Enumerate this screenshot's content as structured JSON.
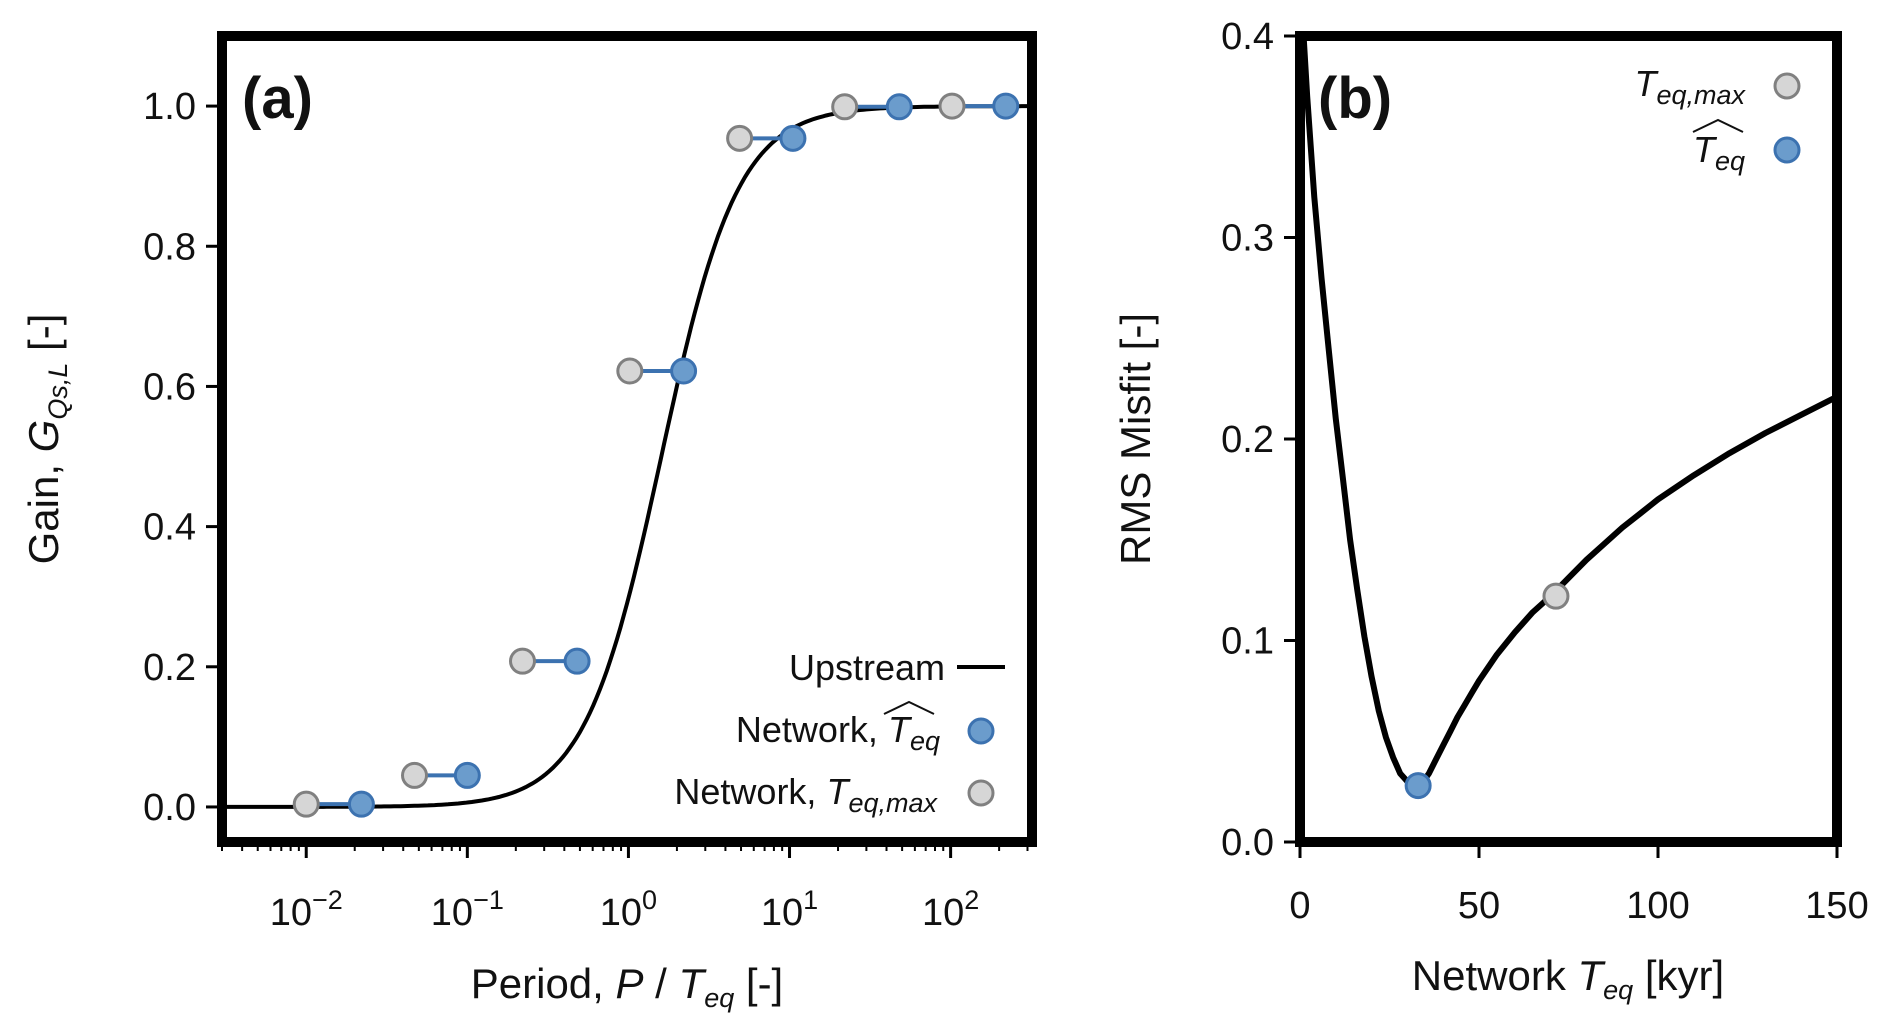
{
  "colors": {
    "network_teq_hat": "#6b9ccc",
    "network_teq_hat_edge": "#3c72b0",
    "network_teq_max": "#d6d6d6",
    "network_teq_max_edge": "#808080",
    "connector": "#3c72b0",
    "upstream": "#000000"
  },
  "chart_data": [
    {
      "panel": "(a)",
      "type": "line",
      "xlabel": "Period, P / T_eq [-]",
      "xlabel_parts": {
        "prefix": "Period, ",
        "var": "P",
        "sep": " / ",
        "var2": "T",
        "sub": "eq",
        "suffix": " [-]"
      },
      "ylabel": "Gain, G_{Qs,L} [-]",
      "ylabel_parts": {
        "prefix": "Gain, ",
        "var": "G",
        "sub": "Qs,L",
        "suffix": " [-]"
      },
      "xscale": "log",
      "xlim": [
        0.003,
        320
      ],
      "ylim": [
        -0.05,
        1.1
      ],
      "xticks": [
        0.01,
        0.1,
        1,
        10,
        100
      ],
      "xtick_labels": [
        {
          "base": "10",
          "exp": "−2"
        },
        {
          "base": "10",
          "exp": "−1"
        },
        {
          "base": "10",
          "exp": "0"
        },
        {
          "base": "10",
          "exp": "1"
        },
        {
          "base": "10",
          "exp": "2"
        }
      ],
      "yticks": [
        0.0,
        0.2,
        0.4,
        0.6,
        0.8,
        1.0
      ],
      "ytick_labels": [
        "0.0",
        "0.2",
        "0.4",
        "0.6",
        "0.8",
        "1.0"
      ],
      "legend_position": "lower-right",
      "series": [
        {
          "name": "Upstream",
          "type": "line",
          "description_curve": "sigmoid",
          "x_range": [
            0.003,
            320
          ],
          "midpoint_x": 1.6,
          "log_slope": 4.2
        },
        {
          "name": "Network, T_eq hat",
          "legend_parts": {
            "prefix": "Network, ",
            "var": "T",
            "sub": "eq",
            "hat": true
          },
          "type": "scatter",
          "x": [
            0.022,
            0.1,
            0.48,
            2.2,
            10.5,
            48,
            220
          ],
          "y": [
            0.004,
            0.045,
            0.208,
            0.622,
            0.954,
            0.999,
            1.0
          ]
        },
        {
          "name": "Network, T_eq,max",
          "legend_parts": {
            "prefix": "Network, ",
            "var": "T",
            "sub": "eq,max",
            "hat": false
          },
          "type": "scatter",
          "x": [
            0.01,
            0.047,
            0.22,
            1.02,
            4.9,
            22,
            102
          ],
          "y": [
            0.004,
            0.045,
            0.208,
            0.622,
            0.954,
            0.999,
            1.0
          ]
        }
      ]
    },
    {
      "panel": "(b)",
      "type": "line",
      "xlabel": "Network T_eq [kyr]",
      "xlabel_parts": {
        "prefix": "Network ",
        "var": "T",
        "sub": "eq",
        "suffix": " [kyr]"
      },
      "ylabel": "RMS Misfit [-]",
      "xlim": [
        0,
        150
      ],
      "ylim": [
        0,
        0.4
      ],
      "xticks": [
        0,
        50,
        100,
        150
      ],
      "xtick_labels": [
        "0",
        "50",
        "100",
        "150"
      ],
      "yticks": [
        0.0,
        0.1,
        0.2,
        0.3,
        0.4
      ],
      "ytick_labels": [
        "0.0",
        "0.1",
        "0.2",
        "0.3",
        "0.4"
      ],
      "legend_position": "upper-right",
      "series": [
        {
          "name": "misfit",
          "type": "line",
          "x": [
            1,
            2,
            4,
            6,
            8,
            10,
            12,
            14,
            16,
            18,
            20,
            22,
            24,
            26,
            28,
            30,
            32,
            33,
            34,
            36,
            38,
            40,
            42,
            44,
            46,
            48,
            50,
            55,
            60,
            65,
            70,
            75,
            80,
            85,
            90,
            95,
            100,
            110,
            120,
            130,
            140,
            150
          ],
          "y": [
            0.4,
            0.37,
            0.32,
            0.28,
            0.245,
            0.21,
            0.18,
            0.15,
            0.125,
            0.102,
            0.082,
            0.065,
            0.052,
            0.042,
            0.034,
            0.03,
            0.028,
            0.028,
            0.029,
            0.034,
            0.041,
            0.048,
            0.055,
            0.062,
            0.068,
            0.074,
            0.08,
            0.093,
            0.104,
            0.114,
            0.122,
            0.131,
            0.14,
            0.148,
            0.156,
            0.163,
            0.17,
            0.182,
            0.193,
            0.203,
            0.212,
            0.221
          ]
        },
        {
          "name": "T_eq,max",
          "legend_parts": {
            "var": "T",
            "sub": "eq,max",
            "hat": false
          },
          "type": "scatter",
          "x": [
            71.5
          ],
          "y": [
            0.122
          ]
        },
        {
          "name": "T_eq hat",
          "legend_parts": {
            "var": "T",
            "sub": "eq",
            "hat": true
          },
          "type": "scatter",
          "x": [
            33
          ],
          "y": [
            0.028
          ]
        }
      ]
    }
  ]
}
